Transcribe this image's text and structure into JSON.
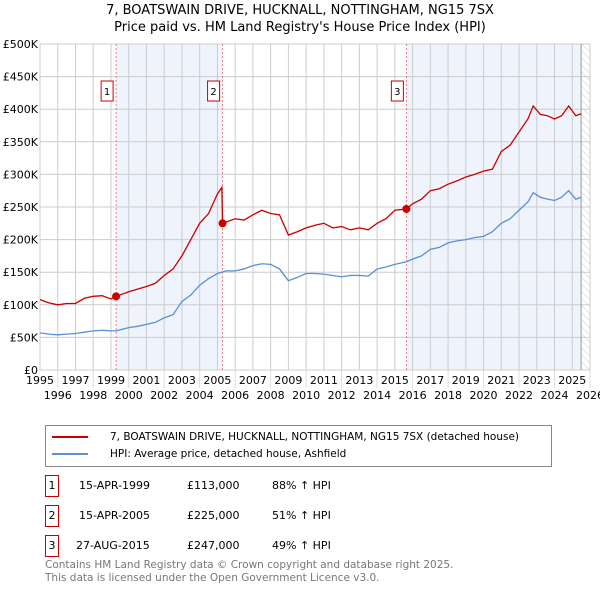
{
  "chart_data": {
    "type": "line",
    "title": "7, BOATSWAIN DRIVE, HUCKNALL, NOTTINGHAM, NG15 7SX",
    "subtitle": "Price paid vs. HM Land Registry's House Price Index (HPI)",
    "xlim": [
      1995,
      2026
    ],
    "ylim": [
      0,
      500000
    ],
    "x_ticks": [
      "1995",
      "1996",
      "1997",
      "1998",
      "1999",
      "2000",
      "2001",
      "2002",
      "2003",
      "2004",
      "2005",
      "2006",
      "2007",
      "2008",
      "2009",
      "2010",
      "2011",
      "2012",
      "2013",
      "2014",
      "2015",
      "2016",
      "2017",
      "2018",
      "2019",
      "2020",
      "2021",
      "2022",
      "2023",
      "2024",
      "2025",
      "2026"
    ],
    "y_ticks": [
      {
        "v": 0,
        "label": "£0"
      },
      {
        "v": 50000,
        "label": "£50K"
      },
      {
        "v": 100000,
        "label": "£100K"
      },
      {
        "v": 150000,
        "label": "£150K"
      },
      {
        "v": 200000,
        "label": "£200K"
      },
      {
        "v": 250000,
        "label": "£250K"
      },
      {
        "v": 300000,
        "label": "£300K"
      },
      {
        "v": 350000,
        "label": "£350K"
      },
      {
        "v": 400000,
        "label": "£400K"
      },
      {
        "v": 450000,
        "label": "£450K"
      },
      {
        "v": 500000,
        "label": "£500K"
      }
    ],
    "grid": true,
    "series": [
      {
        "name": "7, BOATSWAIN DRIVE, HUCKNALL, NOTTINGHAM, NG15 7SX (detached house)",
        "color": "#cc0000",
        "x": [
          1995,
          1995.5,
          1996,
          1996.5,
          1997,
          1997.5,
          1998,
          1998.5,
          1999,
          1999.29,
          2000,
          2000.5,
          2001,
          2001.5,
          2002,
          2002.5,
          2003,
          2003.5,
          2004,
          2004.5,
          2005,
          2005.25,
          2005.29,
          2006,
          2006.5,
          2007,
          2007.5,
          2008,
          2008.5,
          2009,
          2009.5,
          2010,
          2010.5,
          2011,
          2011.5,
          2012,
          2012.5,
          2013,
          2013.5,
          2014,
          2014.5,
          2015,
          2015.65,
          2016,
          2016.5,
          2017,
          2017.5,
          2018,
          2018.5,
          2019,
          2019.5,
          2020,
          2020.5,
          2021,
          2021.5,
          2022,
          2022.5,
          2022.8,
          2023.2,
          2023.6,
          2024,
          2024.4,
          2024.8,
          2025.2,
          2025.5
        ],
        "y": [
          108000,
          103000,
          100000,
          102000,
          102000,
          110000,
          113000,
          114000,
          109000,
          113000,
          120000,
          124000,
          128000,
          133000,
          145000,
          155000,
          175000,
          200000,
          225000,
          240000,
          270000,
          280000,
          225000,
          232000,
          230000,
          238000,
          245000,
          240000,
          238000,
          207000,
          212000,
          218000,
          222000,
          225000,
          218000,
          220000,
          215000,
          218000,
          215000,
          225000,
          232000,
          245000,
          247000,
          255000,
          262000,
          275000,
          278000,
          285000,
          290000,
          296000,
          300000,
          305000,
          308000,
          335000,
          345000,
          365000,
          385000,
          405000,
          392000,
          390000,
          385000,
          390000,
          405000,
          390000,
          393000
        ]
      },
      {
        "name": "HPI: Average price, detached house, Ashfield",
        "color": "#5b8fd6",
        "x": [
          1995,
          1995.5,
          1996,
          1996.5,
          1997,
          1997.5,
          1998,
          1998.5,
          1999,
          1999.29,
          2000,
          2000.5,
          2001,
          2001.5,
          2002,
          2002.5,
          2003,
          2003.5,
          2004,
          2004.5,
          2005,
          2005.5,
          2006,
          2006.5,
          2007,
          2007.5,
          2008,
          2008.5,
          2009,
          2009.5,
          2010,
          2010.5,
          2011,
          2011.5,
          2012,
          2012.5,
          2013,
          2013.5,
          2014,
          2014.5,
          2015,
          2015.65,
          2016,
          2016.5,
          2017,
          2017.5,
          2018,
          2018.5,
          2019,
          2019.5,
          2020,
          2020.5,
          2021,
          2021.5,
          2022,
          2022.5,
          2022.8,
          2023.2,
          2023.6,
          2024,
          2024.4,
          2024.8,
          2025.2,
          2025.5
        ],
        "y": [
          57000,
          55000,
          54000,
          55000,
          56000,
          58000,
          60000,
          61000,
          60000,
          60000,
          65000,
          67000,
          70000,
          73000,
          80000,
          85000,
          105000,
          115000,
          130000,
          140000,
          148000,
          152000,
          152000,
          155000,
          160000,
          163000,
          162000,
          155000,
          137000,
          142000,
          148000,
          148000,
          147000,
          145000,
          143000,
          145000,
          145000,
          144000,
          155000,
          158000,
          162000,
          166000,
          170000,
          175000,
          185000,
          188000,
          195000,
          198000,
          200000,
          203000,
          205000,
          212000,
          225000,
          232000,
          245000,
          258000,
          272000,
          265000,
          262000,
          260000,
          265000,
          275000,
          262000,
          265000
        ]
      }
    ],
    "sales": [
      {
        "id": "1",
        "x": 1999.29,
        "price": 113000,
        "date": "15-APR-1999",
        "price_label": "£113,000",
        "hpi": "88% ↑ HPI"
      },
      {
        "id": "2",
        "x": 2005.29,
        "price": 225000,
        "date": "15-APR-2005",
        "price_label": "£225,000",
        "hpi": "51% ↑ HPI"
      },
      {
        "id": "3",
        "x": 2015.65,
        "price": 247000,
        "date": "27-AUG-2015",
        "price_label": "£247,000",
        "hpi": "49% ↑ HPI"
      }
    ],
    "shaded_ranges": [
      [
        1999.29,
        2005.29
      ],
      [
        2015.65,
        2025.5
      ]
    ],
    "forecast_start": 2025.5,
    "legend_position": "below"
  },
  "footer": {
    "line1": "Contains HM Land Registry data © Crown copyright and database right 2025.",
    "line2": "This data is licensed under the Open Government Licence v3.0."
  }
}
